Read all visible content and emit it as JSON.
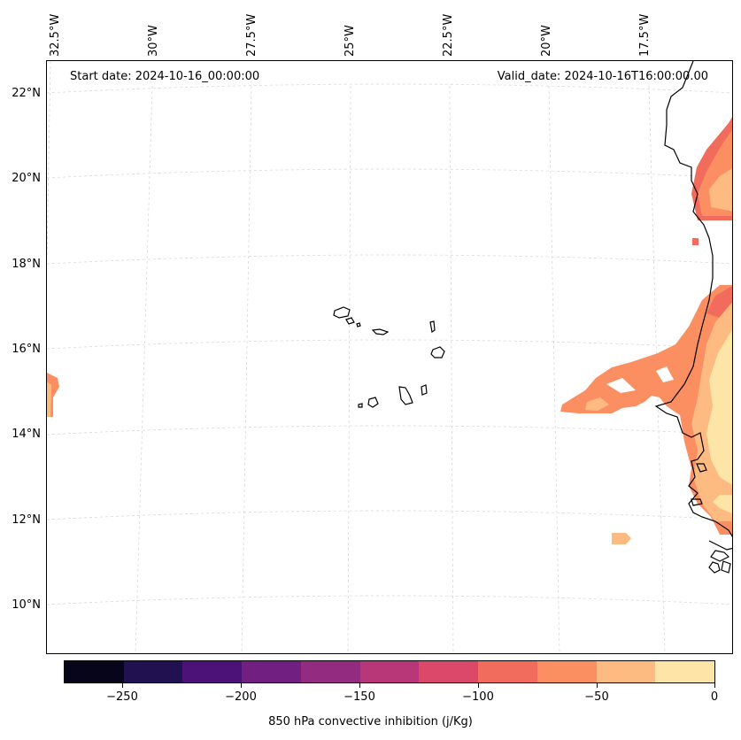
{
  "map": {
    "start_date": "Start date: 2024-10-16_00:00:00",
    "valid_date": "Valid_date: 2024-10-16T16:00:00.00",
    "lon_labels": [
      "32.5°W",
      "30°W",
      "27.5°W",
      "25°W",
      "22.5°W",
      "20°W",
      "17.5°W"
    ],
    "lat_labels": [
      "22°N",
      "20°N",
      "18°N",
      "16°N",
      "14°N",
      "12°N",
      "10°N"
    ]
  },
  "colorbar": {
    "title": "850 hPa convective inhibition (j/Kg)",
    "tick_labels": [
      "−250",
      "−200",
      "−150",
      "−100",
      "−50",
      "0"
    ],
    "colors": [
      "#06051a",
      "#221150",
      "#4c1277",
      "#711f81",
      "#932b80",
      "#b73779",
      "#dc4869",
      "#f16c5c",
      "#fc8f61",
      "#febb81",
      "#fde5a7"
    ],
    "range": [
      -275,
      0
    ]
  },
  "legend_colors": {
    "c100": "#f16c5c",
    "c75": "#fc8f61",
    "c50": "#febb81",
    "c25": "#fde5a7",
    "c125": "#dc4869"
  }
}
